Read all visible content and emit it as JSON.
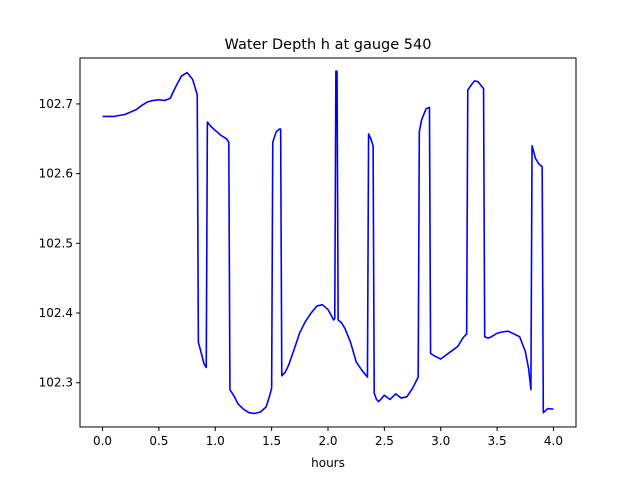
{
  "chart_data": {
    "type": "line",
    "title": "Water Depth h at gauge 540",
    "xlabel": "hours",
    "ylabel": "",
    "xlim": [
      -0.2,
      4.2
    ],
    "ylim": [
      102.2365,
      102.7659
    ],
    "xticks": [
      0.0,
      0.5,
      1.0,
      1.5,
      2.0,
      2.5,
      3.0,
      3.5,
      4.0
    ],
    "xtick_labels": [
      "0.0",
      "0.5",
      "1.0",
      "1.5",
      "2.0",
      "2.5",
      "3.0",
      "3.5",
      "4.0"
    ],
    "yticks": [
      102.3,
      102.4,
      102.5,
      102.6,
      102.7
    ],
    "ytick_labels": [
      "102.3",
      "102.4",
      "102.5",
      "102.6",
      "102.7"
    ],
    "grid": false,
    "legend": "none",
    "series": [
      {
        "color": "#0000ff",
        "points": [
          [
            0.0,
            102.682
          ],
          [
            0.1,
            102.682
          ],
          [
            0.2,
            102.685
          ],
          [
            0.3,
            102.692
          ],
          [
            0.35,
            102.698
          ],
          [
            0.4,
            102.703
          ],
          [
            0.45,
            102.705
          ],
          [
            0.5,
            102.706
          ],
          [
            0.55,
            102.705
          ],
          [
            0.6,
            102.708
          ],
          [
            0.65,
            102.725
          ],
          [
            0.7,
            102.74
          ],
          [
            0.75,
            102.745
          ],
          [
            0.8,
            102.735
          ],
          [
            0.84,
            102.713
          ],
          [
            0.85,
            102.358
          ],
          [
            0.88,
            102.34
          ],
          [
            0.9,
            102.327
          ],
          [
            0.92,
            102.322
          ],
          [
            0.93,
            102.674
          ],
          [
            0.96,
            102.668
          ],
          [
            1.0,
            102.662
          ],
          [
            1.05,
            102.655
          ],
          [
            1.1,
            102.65
          ],
          [
            1.12,
            102.645
          ],
          [
            1.13,
            102.29
          ],
          [
            1.17,
            102.28
          ],
          [
            1.2,
            102.27
          ],
          [
            1.25,
            102.262
          ],
          [
            1.3,
            102.257
          ],
          [
            1.35,
            102.256
          ],
          [
            1.4,
            102.258
          ],
          [
            1.45,
            102.265
          ],
          [
            1.48,
            102.28
          ],
          [
            1.5,
            102.292
          ],
          [
            1.51,
            102.645
          ],
          [
            1.54,
            102.66
          ],
          [
            1.57,
            102.664
          ],
          [
            1.58,
            102.664
          ],
          [
            1.59,
            102.31
          ],
          [
            1.62,
            102.315
          ],
          [
            1.65,
            102.325
          ],
          [
            1.7,
            102.348
          ],
          [
            1.75,
            102.372
          ],
          [
            1.8,
            102.388
          ],
          [
            1.85,
            102.4
          ],
          [
            1.9,
            102.41
          ],
          [
            1.95,
            102.412
          ],
          [
            2.0,
            102.405
          ],
          [
            2.05,
            102.39
          ],
          [
            2.06,
            102.392
          ],
          [
            2.07,
            102.747
          ],
          [
            2.08,
            102.747
          ],
          [
            2.09,
            102.39
          ],
          [
            2.12,
            102.386
          ],
          [
            2.15,
            102.378
          ],
          [
            2.2,
            102.358
          ],
          [
            2.25,
            102.33
          ],
          [
            2.3,
            102.318
          ],
          [
            2.35,
            102.308
          ],
          [
            2.36,
            102.657
          ],
          [
            2.38,
            102.65
          ],
          [
            2.4,
            102.64
          ],
          [
            2.41,
            102.285
          ],
          [
            2.43,
            102.276
          ],
          [
            2.45,
            102.273
          ],
          [
            2.5,
            102.282
          ],
          [
            2.55,
            102.276
          ],
          [
            2.6,
            102.284
          ],
          [
            2.65,
            102.278
          ],
          [
            2.7,
            102.28
          ],
          [
            2.75,
            102.292
          ],
          [
            2.8,
            102.308
          ],
          [
            2.81,
            102.66
          ],
          [
            2.83,
            102.677
          ],
          [
            2.87,
            102.693
          ],
          [
            2.9,
            102.695
          ],
          [
            2.91,
            102.342
          ],
          [
            2.95,
            102.338
          ],
          [
            3.0,
            102.334
          ],
          [
            3.05,
            102.34
          ],
          [
            3.1,
            102.346
          ],
          [
            3.15,
            102.352
          ],
          [
            3.2,
            102.365
          ],
          [
            3.23,
            102.37
          ],
          [
            3.24,
            102.72
          ],
          [
            3.27,
            102.727
          ],
          [
            3.3,
            102.733
          ],
          [
            3.33,
            102.732
          ],
          [
            3.38,
            102.722
          ],
          [
            3.39,
            102.366
          ],
          [
            3.42,
            102.364
          ],
          [
            3.45,
            102.366
          ],
          [
            3.5,
            102.371
          ],
          [
            3.55,
            102.373
          ],
          [
            3.6,
            102.374
          ],
          [
            3.65,
            102.37
          ],
          [
            3.7,
            102.366
          ],
          [
            3.75,
            102.345
          ],
          [
            3.78,
            102.32
          ],
          [
            3.8,
            102.29
          ],
          [
            3.81,
            102.64
          ],
          [
            3.84,
            102.622
          ],
          [
            3.87,
            102.614
          ],
          [
            3.9,
            102.61
          ],
          [
            3.91,
            102.257
          ],
          [
            3.95,
            102.263
          ],
          [
            4.0,
            102.262
          ]
        ]
      }
    ]
  }
}
